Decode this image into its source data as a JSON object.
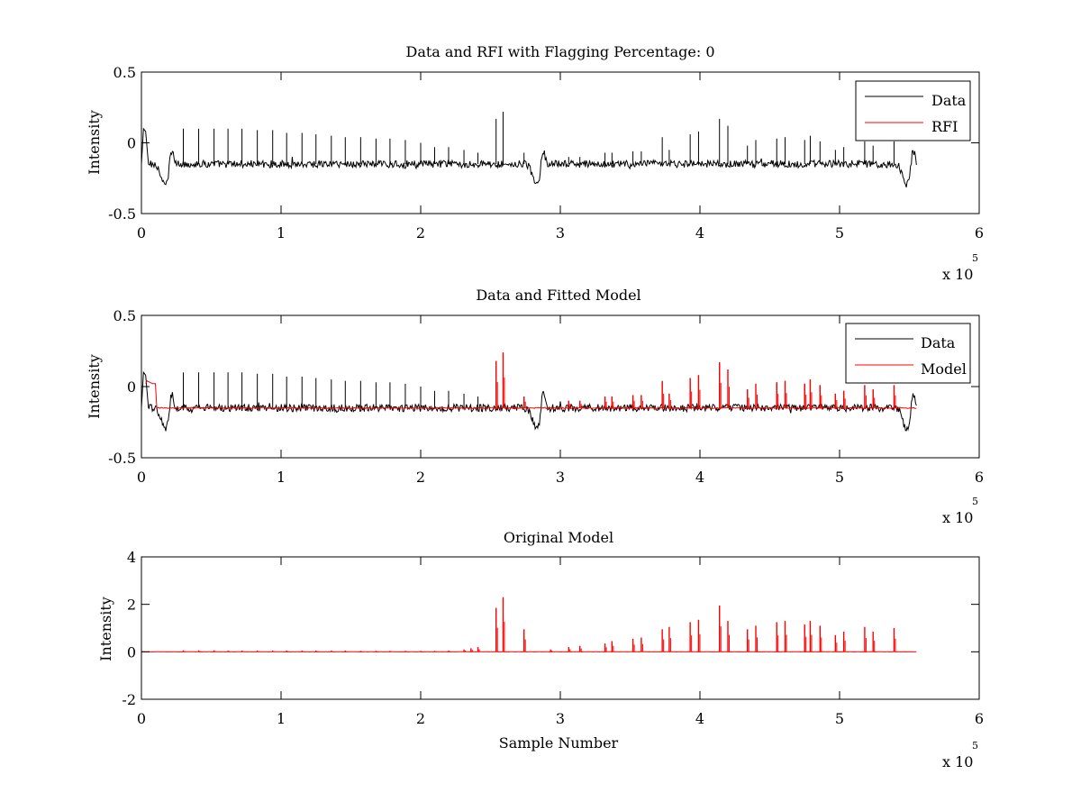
{
  "figure": {
    "background": "#ffffff",
    "colors": {
      "data": "#000000",
      "rfi": "#ff0000",
      "model": "#ff0000"
    }
  },
  "chart_data": [
    {
      "type": "line",
      "title": "Data and RFI with Flagging Percentage: 0",
      "xlabel": "",
      "ylabel": "Intensity",
      "xlim": [
        0,
        600000
      ],
      "ylim": [
        -0.5,
        0.5
      ],
      "xticks": [
        0,
        1,
        2,
        3,
        4,
        5,
        6
      ],
      "xtick_labels": [
        "0",
        "1",
        "2",
        "3",
        "4",
        "5",
        "6"
      ],
      "yticks": [
        0.5,
        0,
        -0.5
      ],
      "ytick_labels": [
        "0.5",
        "0",
        "-0.5"
      ],
      "x_exponent": {
        "base": "x 10",
        "power": "5"
      },
      "grid": false,
      "legend": {
        "placement": "top-right",
        "entries": [
          "Data",
          "RFI"
        ]
      },
      "series": [
        {
          "name": "Data",
          "color": "#000000",
          "kind": "data",
          "baseline": -0.15,
          "noise": 0.012,
          "x_end": 555000,
          "dips": [
            {
              "x": 17000,
              "depth": -0.3
            },
            {
              "x": 283000,
              "depth": -0.3
            },
            {
              "x": 548000,
              "depth": -0.3
            }
          ],
          "startup": {
            "x": [
              0,
              1500,
              3000,
              5000
            ],
            "y": [
              -0.15,
              0.1,
              0.08,
              -0.15
            ]
          },
          "peaks": [
            {
              "x": 30000,
              "h": 0.1
            },
            {
              "x": 41000,
              "h": 0.1
            },
            {
              "x": 52000,
              "h": 0.1
            },
            {
              "x": 62000,
              "h": 0.1
            },
            {
              "x": 72000,
              "h": 0.1
            },
            {
              "x": 83000,
              "h": 0.09
            },
            {
              "x": 94000,
              "h": 0.09
            },
            {
              "x": 104000,
              "h": 0.07
            },
            {
              "x": 115000,
              "h": 0.07
            },
            {
              "x": 125000,
              "h": 0.06
            },
            {
              "x": 136000,
              "h": 0.05
            },
            {
              "x": 146000,
              "h": 0.04
            },
            {
              "x": 157000,
              "h": 0.04
            },
            {
              "x": 168000,
              "h": 0.03
            },
            {
              "x": 178000,
              "h": 0.03
            },
            {
              "x": 189000,
              "h": 0.02
            },
            {
              "x": 200000,
              "h": 0.0
            },
            {
              "x": 210000,
              "h": -0.03
            },
            {
              "x": 220000,
              "h": -0.03
            },
            {
              "x": 231000,
              "h": -0.05
            },
            {
              "x": 241000,
              "h": -0.07
            },
            {
              "x": 254000,
              "h": 0.17
            },
            {
              "x": 259000,
              "h": 0.22
            },
            {
              "x": 274000,
              "h": -0.07
            },
            {
              "x": 306000,
              "h": -0.1
            },
            {
              "x": 314000,
              "h": -0.1
            },
            {
              "x": 332000,
              "h": -0.07
            },
            {
              "x": 337000,
              "h": -0.07
            },
            {
              "x": 352000,
              "h": -0.06
            },
            {
              "x": 358000,
              "h": -0.06
            },
            {
              "x": 373000,
              "h": 0.04
            },
            {
              "x": 378000,
              "h": -0.05
            },
            {
              "x": 393000,
              "h": 0.06
            },
            {
              "x": 399000,
              "h": 0.08
            },
            {
              "x": 414000,
              "h": 0.17
            },
            {
              "x": 420000,
              "h": 0.12
            },
            {
              "x": 434000,
              "h": -0.02
            },
            {
              "x": 440000,
              "h": 0.02
            },
            {
              "x": 455000,
              "h": 0.03
            },
            {
              "x": 461000,
              "h": 0.04
            },
            {
              "x": 475000,
              "h": 0.02
            },
            {
              "x": 479000,
              "h": 0.05
            },
            {
              "x": 486000,
              "h": 0.01
            },
            {
              "x": 497000,
              "h": -0.05
            },
            {
              "x": 503000,
              "h": -0.03
            },
            {
              "x": 518000,
              "h": 0.01
            },
            {
              "x": 524000,
              "h": -0.02
            },
            {
              "x": 539000,
              "h": 0.01
            }
          ]
        },
        {
          "name": "RFI",
          "color": "#ff0000",
          "kind": "legend-only"
        }
      ]
    },
    {
      "type": "line",
      "title": "Data and Fitted Model",
      "xlabel": "",
      "ylabel": "Intensity",
      "xlim": [
        0,
        600000
      ],
      "ylim": [
        -0.5,
        0.5
      ],
      "xticks": [
        0,
        1,
        2,
        3,
        4,
        5,
        6
      ],
      "xtick_labels": [
        "0",
        "1",
        "2",
        "3",
        "4",
        "5",
        "6"
      ],
      "yticks": [
        0.5,
        0,
        -0.5
      ],
      "ytick_labels": [
        "0.5",
        "0",
        "-0.5"
      ],
      "x_exponent": {
        "base": "x 10",
        "power": "5"
      },
      "grid": false,
      "legend": {
        "placement": "top-right",
        "entries": [
          "Data",
          "Model"
        ]
      },
      "series": [
        {
          "name": "Data",
          "color": "#000000",
          "kind": "data",
          "baseline": -0.15,
          "noise": 0.012,
          "x_end": 555000,
          "dips": [
            {
              "x": 17000,
              "depth": -0.3
            },
            {
              "x": 283000,
              "depth": -0.3
            },
            {
              "x": 548000,
              "depth": -0.3
            }
          ],
          "startup": {
            "x": [
              0,
              1500,
              3000,
              5000
            ],
            "y": [
              -0.15,
              0.1,
              0.08,
              -0.15
            ]
          },
          "peaks": [
            {
              "x": 30000,
              "h": 0.1
            },
            {
              "x": 41000,
              "h": 0.1
            },
            {
              "x": 52000,
              "h": 0.1
            },
            {
              "x": 62000,
              "h": 0.1
            },
            {
              "x": 72000,
              "h": 0.1
            },
            {
              "x": 83000,
              "h": 0.09
            },
            {
              "x": 94000,
              "h": 0.09
            },
            {
              "x": 104000,
              "h": 0.07
            },
            {
              "x": 115000,
              "h": 0.07
            },
            {
              "x": 125000,
              "h": 0.06
            },
            {
              "x": 136000,
              "h": 0.05
            },
            {
              "x": 146000,
              "h": 0.04
            },
            {
              "x": 157000,
              "h": 0.04
            },
            {
              "x": 168000,
              "h": 0.03
            },
            {
              "x": 178000,
              "h": 0.03
            },
            {
              "x": 189000,
              "h": 0.02
            },
            {
              "x": 200000,
              "h": 0.0
            },
            {
              "x": 210000,
              "h": -0.03
            },
            {
              "x": 220000,
              "h": -0.03
            },
            {
              "x": 231000,
              "h": -0.05
            },
            {
              "x": 241000,
              "h": -0.07
            },
            {
              "x": 274000,
              "h": -0.07
            },
            {
              "x": 306000,
              "h": -0.1
            },
            {
              "x": 314000,
              "h": -0.1
            },
            {
              "x": 332000,
              "h": -0.07
            },
            {
              "x": 337000,
              "h": -0.07
            },
            {
              "x": 352000,
              "h": -0.06
            },
            {
              "x": 358000,
              "h": -0.06
            },
            {
              "x": 373000,
              "h": 0.04
            },
            {
              "x": 378000,
              "h": -0.05
            },
            {
              "x": 393000,
              "h": 0.06
            },
            {
              "x": 399000,
              "h": 0.08
            },
            {
              "x": 414000,
              "h": 0.17
            },
            {
              "x": 420000,
              "h": 0.12
            },
            {
              "x": 434000,
              "h": -0.02
            },
            {
              "x": 440000,
              "h": 0.02
            },
            {
              "x": 455000,
              "h": 0.03
            },
            {
              "x": 461000,
              "h": 0.04
            },
            {
              "x": 475000,
              "h": 0.02
            },
            {
              "x": 479000,
              "h": 0.05
            },
            {
              "x": 486000,
              "h": 0.01
            },
            {
              "x": 497000,
              "h": -0.05
            },
            {
              "x": 503000,
              "h": -0.03
            },
            {
              "x": 518000,
              "h": 0.01
            },
            {
              "x": 524000,
              "h": -0.02
            },
            {
              "x": 539000,
              "h": 0.01
            }
          ]
        },
        {
          "name": "Model",
          "color": "#ff0000",
          "kind": "model",
          "baseline": -0.15,
          "noise": 0.004,
          "x_start": 3000,
          "x_end": 555000,
          "startup": {
            "x": [
              3000,
              4000,
              8000,
              10000,
              11000
            ],
            "y": [
              0.02,
              0.04,
              0.02,
              0.02,
              -0.15
            ]
          },
          "peaks": [
            {
              "x": 254000,
              "h": 0.18
            },
            {
              "x": 259000,
              "h": 0.24
            },
            {
              "x": 274000,
              "h": -0.07
            },
            {
              "x": 306000,
              "h": -0.1
            },
            {
              "x": 314000,
              "h": -0.1
            },
            {
              "x": 332000,
              "h": -0.07
            },
            {
              "x": 337000,
              "h": -0.07
            },
            {
              "x": 352000,
              "h": -0.06
            },
            {
              "x": 358000,
              "h": -0.06
            },
            {
              "x": 373000,
              "h": 0.03
            },
            {
              "x": 378000,
              "h": -0.05
            },
            {
              "x": 393000,
              "h": 0.06
            },
            {
              "x": 399000,
              "h": 0.08
            },
            {
              "x": 414000,
              "h": 0.17
            },
            {
              "x": 420000,
              "h": 0.12
            },
            {
              "x": 434000,
              "h": -0.02
            },
            {
              "x": 440000,
              "h": 0.02
            },
            {
              "x": 455000,
              "h": 0.03
            },
            {
              "x": 461000,
              "h": 0.04
            },
            {
              "x": 475000,
              "h": 0.02
            },
            {
              "x": 479000,
              "h": 0.05
            },
            {
              "x": 486000,
              "h": 0.01
            },
            {
              "x": 497000,
              "h": -0.05
            },
            {
              "x": 503000,
              "h": -0.03
            },
            {
              "x": 518000,
              "h": 0.01
            },
            {
              "x": 524000,
              "h": -0.02
            },
            {
              "x": 539000,
              "h": 0.01
            }
          ]
        }
      ]
    },
    {
      "type": "line",
      "title": "Original Model",
      "xlabel": "Sample Number",
      "ylabel": "Intensity",
      "xlim": [
        0,
        600000
      ],
      "ylim": [
        -2,
        4
      ],
      "xticks": [
        0,
        1,
        2,
        3,
        4,
        5,
        6
      ],
      "xtick_labels": [
        "0",
        "1",
        "2",
        "3",
        "4",
        "5",
        "6"
      ],
      "yticks": [
        4,
        2,
        0,
        -2
      ],
      "ytick_labels": [
        "4",
        "2",
        "0",
        "-2"
      ],
      "x_exponent": {
        "base": "x 10",
        "power": "5"
      },
      "grid": false,
      "legend": null,
      "series": [
        {
          "color": "#ff0000",
          "kind": "model",
          "baseline": 0,
          "noise": 0.004,
          "x_start": 0,
          "x_end": 555000,
          "peaks": [
            {
              "x": 30000,
              "h": 0.06
            },
            {
              "x": 41000,
              "h": 0.06
            },
            {
              "x": 52000,
              "h": 0.06
            },
            {
              "x": 62000,
              "h": 0.05
            },
            {
              "x": 72000,
              "h": 0.05
            },
            {
              "x": 83000,
              "h": 0.05
            },
            {
              "x": 94000,
              "h": 0.05
            },
            {
              "x": 104000,
              "h": 0.05
            },
            {
              "x": 115000,
              "h": 0.05
            },
            {
              "x": 125000,
              "h": 0.05
            },
            {
              "x": 136000,
              "h": 0.05
            },
            {
              "x": 146000,
              "h": 0.05
            },
            {
              "x": 157000,
              "h": 0.04
            },
            {
              "x": 168000,
              "h": 0.04
            },
            {
              "x": 178000,
              "h": 0.04
            },
            {
              "x": 189000,
              "h": 0.04
            },
            {
              "x": 200000,
              "h": 0.04
            },
            {
              "x": 210000,
              "h": 0.04
            },
            {
              "x": 220000,
              "h": 0.05
            },
            {
              "x": 231000,
              "h": 0.1
            },
            {
              "x": 236000,
              "h": 0.15
            },
            {
              "x": 241000,
              "h": 0.2
            },
            {
              "x": 254000,
              "h": 1.85
            },
            {
              "x": 259000,
              "h": 2.3
            },
            {
              "x": 274000,
              "h": 0.95
            },
            {
              "x": 293000,
              "h": 0.1
            },
            {
              "x": 306000,
              "h": 0.2
            },
            {
              "x": 314000,
              "h": 0.25
            },
            {
              "x": 332000,
              "h": 0.35
            },
            {
              "x": 337000,
              "h": 0.45
            },
            {
              "x": 352000,
              "h": 0.55
            },
            {
              "x": 358000,
              "h": 0.6
            },
            {
              "x": 373000,
              "h": 0.95
            },
            {
              "x": 378000,
              "h": 1.05
            },
            {
              "x": 393000,
              "h": 1.25
            },
            {
              "x": 399000,
              "h": 1.35
            },
            {
              "x": 414000,
              "h": 1.95
            },
            {
              "x": 420000,
              "h": 1.3
            },
            {
              "x": 434000,
              "h": 0.95
            },
            {
              "x": 440000,
              "h": 1.1
            },
            {
              "x": 455000,
              "h": 1.25
            },
            {
              "x": 461000,
              "h": 1.3
            },
            {
              "x": 475000,
              "h": 1.15
            },
            {
              "x": 479000,
              "h": 1.3
            },
            {
              "x": 486000,
              "h": 1.1
            },
            {
              "x": 497000,
              "h": 0.7
            },
            {
              "x": 503000,
              "h": 0.85
            },
            {
              "x": 518000,
              "h": 1.05
            },
            {
              "x": 524000,
              "h": 0.85
            },
            {
              "x": 539000,
              "h": 1.0
            }
          ]
        }
      ]
    }
  ]
}
